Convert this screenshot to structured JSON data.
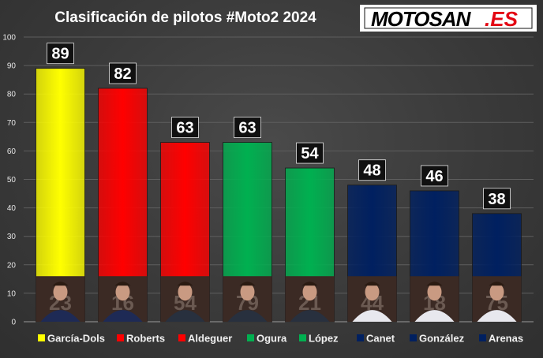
{
  "title": "Clasificación de pilotos #Moto2 2024",
  "logo": {
    "text": "MOTOSAN.ES",
    "brand_colors": {
      "motosan": "#000000",
      "es": "#e30613",
      "background": "#ffffff"
    }
  },
  "chart_data": {
    "type": "bar",
    "title": "Clasificación de pilotos #Moto2 2024",
    "xlabel": "",
    "ylabel": "",
    "ylim": [
      0,
      100
    ],
    "yticks": [
      0,
      10,
      20,
      30,
      40,
      50,
      60,
      70,
      80,
      90,
      100
    ],
    "grid": true,
    "legend_position": "bottom",
    "categories": [
      "García-Dols",
      "Roberts",
      "Aldeguer",
      "Ogura",
      "López",
      "Canet",
      "González",
      "Arenas"
    ],
    "values": [
      89,
      82,
      63,
      63,
      54,
      48,
      46,
      38
    ],
    "bar_colors": [
      "#ffff00",
      "#ff0000",
      "#ff0000",
      "#00b050",
      "#00b050",
      "#002060",
      "#002060",
      "#002060"
    ],
    "data_labels": [
      "89",
      "82",
      "63",
      "63",
      "54",
      "48",
      "46",
      "38"
    ],
    "rider_photo_numbers": [
      "23",
      "16",
      "54",
      "79",
      "21",
      "44",
      "18",
      "75"
    ]
  }
}
